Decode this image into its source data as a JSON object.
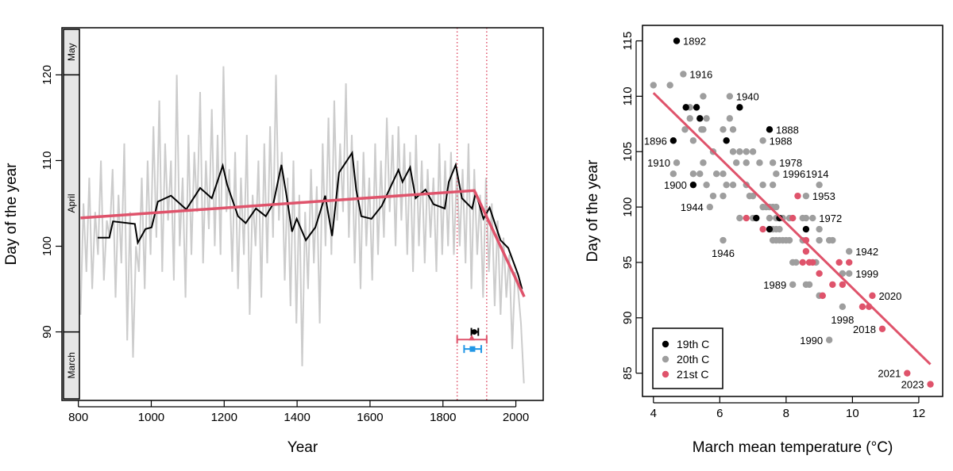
{
  "colors": {
    "red": "#DF536B",
    "grey_points": "#9E9E9E",
    "annual_series": "#CCCCCC",
    "blue": "#2297E6",
    "black": "#000000"
  },
  "chart_data": [
    {
      "type": "line",
      "xlabel": "Year",
      "ylabel": "Day of the year",
      "xlim": [
        755,
        2075
      ],
      "ylim": [
        82,
        125.5
      ],
      "xticks": [
        800,
        1000,
        1200,
        1400,
        1600,
        1800,
        2000
      ],
      "yticks": [
        90,
        100,
        110,
        120
      ],
      "month_bands": [
        {
          "label": "May",
          "from": 120,
          "to": 125.5
        },
        {
          "label": "April",
          "from": 90,
          "to": 120
        },
        {
          "label": "March",
          "from": 82,
          "to": 90
        }
      ],
      "annual_series": {
        "start_year": 806,
        "step": 8,
        "values": [
          92,
          105,
          97,
          108,
          95,
          104,
          99,
          110,
          96,
          103,
          101,
          109,
          94,
          106,
          98,
          112,
          89,
          104,
          87,
          100,
          97,
          108,
          95,
          110,
          99,
          114,
          101,
          117,
          97,
          112,
          103,
          110,
          96,
          120,
          100,
          108,
          94,
          113,
          99,
          111,
          104,
          118,
          98,
          110,
          102,
          116,
          100,
          113,
          99,
          121,
          104,
          109,
          97,
          111,
          95,
          108,
          99,
          113,
          92,
          106,
          100,
          110,
          94,
          112,
          98,
          114,
          101,
          120,
          103,
          111,
          96,
          108,
          93,
          110,
          91,
          106,
          86,
          104,
          95,
          109,
          98,
          107,
          91,
          112,
          100,
          115,
          99,
          117,
          103,
          112,
          104,
          119,
          101,
          113,
          98,
          110,
          95,
          111,
          100,
          108,
          96,
          112,
          99,
          110,
          101,
          115,
          104,
          113,
          100,
          114,
          103,
          112,
          99,
          111,
          97,
          113,
          100,
          110,
          98,
          109,
          101,
          108,
          97,
          112,
          99,
          110,
          100,
          111,
          99,
          109,
          100,
          109,
          98,
          112,
          95,
          109,
          99,
          106,
          94,
          108,
          97,
          105,
          93,
          103,
          92,
          101,
          94,
          99,
          88,
          97,
          95,
          91,
          84
        ]
      },
      "smoothed_series": [
        [
          853,
          101.0
        ],
        [
          885,
          101.0
        ],
        [
          895,
          102.9
        ],
        [
          955,
          102.6
        ],
        [
          963,
          100.4
        ],
        [
          984,
          102.0
        ],
        [
          1001,
          102.2
        ],
        [
          1018,
          105.2
        ],
        [
          1054,
          105.9
        ],
        [
          1096,
          104.3
        ],
        [
          1134,
          106.8
        ],
        [
          1166,
          105.6
        ],
        [
          1196,
          109.4
        ],
        [
          1208,
          107.2
        ],
        [
          1238,
          103.5
        ],
        [
          1259,
          102.7
        ],
        [
          1287,
          104.4
        ],
        [
          1314,
          103.5
        ],
        [
          1335,
          105.0
        ],
        [
          1357,
          109.5
        ],
        [
          1371,
          105.9
        ],
        [
          1386,
          101.7
        ],
        [
          1399,
          103.2
        ],
        [
          1424,
          100.7
        ],
        [
          1450,
          102.2
        ],
        [
          1477,
          105.9
        ],
        [
          1496,
          101.2
        ],
        [
          1515,
          108.6
        ],
        [
          1551,
          110.9
        ],
        [
          1562,
          106.6
        ],
        [
          1576,
          103.5
        ],
        [
          1604,
          103.2
        ],
        [
          1632,
          104.7
        ],
        [
          1678,
          108.9
        ],
        [
          1689,
          107.5
        ],
        [
          1710,
          109.2
        ],
        [
          1725,
          105.6
        ],
        [
          1752,
          106.6
        ],
        [
          1774,
          104.9
        ],
        [
          1805,
          104.4
        ],
        [
          1816,
          107.5
        ],
        [
          1835,
          109.5
        ],
        [
          1852,
          105.6
        ],
        [
          1880,
          104.4
        ],
        [
          1890,
          106.3
        ],
        [
          1911,
          103.2
        ],
        [
          1928,
          104.5
        ],
        [
          1958,
          100.7
        ],
        [
          1979,
          99.8
        ],
        [
          2006,
          96.7
        ],
        [
          2017,
          95.0
        ]
      ],
      "piecewise_fit": [
        [
          806,
          103.3
        ],
        [
          1886,
          106.5
        ],
        [
          2023,
          94.1
        ]
      ],
      "breakpoint_interval": [
        1839,
        1920
      ],
      "breakpoint_estimates": [
        {
          "marker": "circle",
          "color": "#000000",
          "x": 1886,
          "y": 90.0,
          "ci": [
            1878,
            1897
          ]
        },
        {
          "marker": "triangle",
          "color": "#DF536B",
          "x": 1879,
          "y": 89.1,
          "ci": [
            1839,
            1920
          ]
        },
        {
          "marker": "square",
          "color": "#2297E6",
          "x": 1881,
          "y": 88.0,
          "ci": [
            1858,
            1905
          ]
        }
      ]
    },
    {
      "type": "scatter",
      "xlabel": "March mean temperature (°C)",
      "ylabel": "Day of the year",
      "xlim": [
        3.67,
        12.72
      ],
      "ylim": [
        82.9,
        116.4
      ],
      "xticks": [
        4,
        6,
        8,
        10,
        12
      ],
      "yticks": [
        85,
        90,
        95,
        100,
        105,
        110,
        115
      ],
      "legend_position": "bottom-left",
      "series": [
        {
          "name": "19th C",
          "color": "#000000",
          "points": [
            [
              4.7,
              115
            ],
            [
              4.98,
              109
            ],
            [
              5.3,
              109
            ],
            [
              6.6,
              109
            ],
            [
              5.4,
              108
            ],
            [
              7.5,
              107
            ],
            [
              4.6,
              106
            ],
            [
              6.2,
              106
            ],
            [
              5.2,
              102
            ],
            [
              7.1,
              99
            ],
            [
              7.8,
              99
            ],
            [
              7.5,
              98
            ],
            [
              8.6,
              98
            ]
          ]
        },
        {
          "name": "20th C",
          "color": "#9E9E9E",
          "points": [
            [
              4.0,
              111
            ],
            [
              4.5,
              111
            ],
            [
              4.9,
              112
            ],
            [
              5.5,
              110
            ],
            [
              6.3,
              110
            ],
            [
              5.1,
              109
            ],
            [
              5.1,
              108
            ],
            [
              5.6,
              108
            ],
            [
              6.3,
              108
            ],
            [
              4.95,
              107
            ],
            [
              5.45,
              107
            ],
            [
              5.5,
              107
            ],
            [
              6.1,
              107
            ],
            [
              6.4,
              107
            ],
            [
              5.2,
              106
            ],
            [
              7.3,
              106
            ],
            [
              5.8,
              105
            ],
            [
              6.4,
              105
            ],
            [
              6.6,
              105
            ],
            [
              6.8,
              105
            ],
            [
              7.0,
              105
            ],
            [
              4.7,
              104
            ],
            [
              5.5,
              104
            ],
            [
              6.5,
              104
            ],
            [
              6.8,
              104
            ],
            [
              7.2,
              104
            ],
            [
              7.6,
              104
            ],
            [
              4.6,
              103
            ],
            [
              5.2,
              103
            ],
            [
              5.4,
              103
            ],
            [
              5.9,
              103
            ],
            [
              6.1,
              103
            ],
            [
              7.7,
              103
            ],
            [
              5.6,
              102
            ],
            [
              6.2,
              102
            ],
            [
              6.4,
              102
            ],
            [
              6.8,
              102
            ],
            [
              7.3,
              102
            ],
            [
              7.6,
              102
            ],
            [
              9.0,
              102
            ],
            [
              5.8,
              101
            ],
            [
              6.1,
              101
            ],
            [
              6.9,
              101
            ],
            [
              7.0,
              101
            ],
            [
              8.6,
              101
            ],
            [
              5.7,
              100
            ],
            [
              7.3,
              100
            ],
            [
              7.4,
              100
            ],
            [
              7.5,
              100
            ],
            [
              7.6,
              100
            ],
            [
              7.7,
              100
            ],
            [
              6.6,
              99
            ],
            [
              7.0,
              99
            ],
            [
              7.5,
              99
            ],
            [
              7.7,
              99
            ],
            [
              7.9,
              99
            ],
            [
              8.1,
              99
            ],
            [
              8.5,
              99
            ],
            [
              8.6,
              99
            ],
            [
              8.8,
              99
            ],
            [
              7.6,
              98
            ],
            [
              7.7,
              98
            ],
            [
              7.8,
              98
            ],
            [
              9.0,
              98
            ],
            [
              6.1,
              97
            ],
            [
              7.6,
              97
            ],
            [
              7.7,
              97
            ],
            [
              7.8,
              97
            ],
            [
              7.9,
              97
            ],
            [
              8.0,
              97
            ],
            [
              8.1,
              97
            ],
            [
              8.5,
              97
            ],
            [
              9.0,
              97
            ],
            [
              9.3,
              97
            ],
            [
              9.4,
              97
            ],
            [
              9.9,
              96
            ],
            [
              8.2,
              95
            ],
            [
              8.3,
              95
            ],
            [
              8.9,
              95
            ],
            [
              9.7,
              94
            ],
            [
              9.9,
              94
            ],
            [
              8.2,
              93
            ],
            [
              8.6,
              93
            ],
            [
              8.7,
              93
            ],
            [
              9.0,
              92
            ],
            [
              9.7,
              91
            ],
            [
              9.3,
              88
            ]
          ]
        },
        {
          "name": "21st C",
          "color": "#DF536B",
          "points": [
            [
              8.35,
              101
            ],
            [
              6.8,
              99
            ],
            [
              8.2,
              99
            ],
            [
              7.3,
              98
            ],
            [
              8.6,
              97
            ],
            [
              8.6,
              96
            ],
            [
              8.5,
              95
            ],
            [
              8.7,
              95
            ],
            [
              8.8,
              95
            ],
            [
              9.6,
              95
            ],
            [
              9.9,
              95
            ],
            [
              9.0,
              94
            ],
            [
              9.4,
              93
            ],
            [
              9.7,
              93
            ],
            [
              9.1,
              92
            ],
            [
              10.6,
              92
            ],
            [
              10.3,
              91
            ],
            [
              10.5,
              91
            ],
            [
              10.9,
              89
            ],
            [
              11.65,
              85
            ],
            [
              12.35,
              84
            ]
          ]
        }
      ],
      "fit_line": [
        [
          4.0,
          110.3
        ],
        [
          12.35,
          85.8
        ]
      ],
      "point_labels": [
        {
          "text": "1892",
          "x": 4.7,
          "y": 115,
          "pos": "right"
        },
        {
          "text": "1916",
          "x": 4.9,
          "y": 112,
          "pos": "right"
        },
        {
          "text": "1940",
          "x": 6.3,
          "y": 110,
          "pos": "right"
        },
        {
          "text": "1888",
          "x": 7.5,
          "y": 107,
          "pos": "right"
        },
        {
          "text": "1896",
          "x": 4.6,
          "y": 106,
          "pos": "left"
        },
        {
          "text": "1988",
          "x": 7.3,
          "y": 106,
          "pos": "right"
        },
        {
          "text": "1910",
          "x": 4.7,
          "y": 104,
          "pos": "left"
        },
        {
          "text": "1978",
          "x": 7.6,
          "y": 104,
          "pos": "right"
        },
        {
          "text": "1996",
          "x": 7.7,
          "y": 103,
          "pos": "right"
        },
        {
          "text": "1914",
          "x": 8.4,
          "y": 103,
          "pos": "right"
        },
        {
          "text": "1900",
          "x": 5.2,
          "y": 102,
          "pos": "left"
        },
        {
          "text": "1953",
          "x": 8.6,
          "y": 101,
          "pos": "right"
        },
        {
          "text": "1944",
          "x": 5.7,
          "y": 100,
          "pos": "left"
        },
        {
          "text": "1972",
          "x": 8.8,
          "y": 99,
          "pos": "right"
        },
        {
          "text": "1946",
          "x": 6.1,
          "y": 97,
          "pos": "below"
        },
        {
          "text": "1942",
          "x": 9.9,
          "y": 96,
          "pos": "right"
        },
        {
          "text": "1999",
          "x": 9.9,
          "y": 94,
          "pos": "right"
        },
        {
          "text": "1989",
          "x": 8.2,
          "y": 93,
          "pos": "left"
        },
        {
          "text": "2020",
          "x": 10.6,
          "y": 92,
          "pos": "right"
        },
        {
          "text": "1998",
          "x": 9.7,
          "y": 91,
          "pos": "below"
        },
        {
          "text": "2018",
          "x": 10.9,
          "y": 89,
          "pos": "left"
        },
        {
          "text": "1990",
          "x": 9.3,
          "y": 88,
          "pos": "left"
        },
        {
          "text": "2021",
          "x": 11.65,
          "y": 85,
          "pos": "left"
        },
        {
          "text": "2023",
          "x": 12.35,
          "y": 84,
          "pos": "left"
        }
      ]
    }
  ]
}
